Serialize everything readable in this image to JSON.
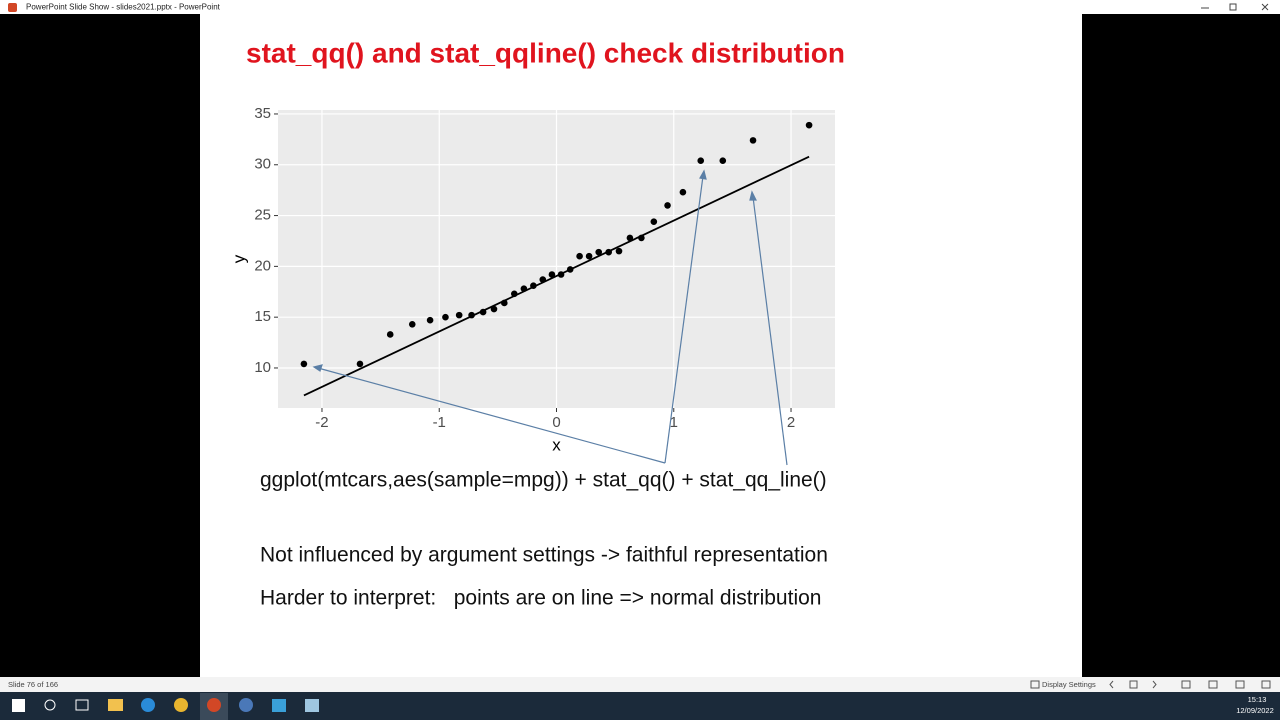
{
  "window": {
    "title": "PowerPoint Slide Show  -  slides2021.pptx  -  PowerPoint"
  },
  "slide": {
    "title": "stat_qq() and stat_qqline() check distribution",
    "lines": [
      "ggplot(mtcars,aes(sample=mpg)) + stat_qq() + stat_qq_line()",
      "Not influenced by argument settings -> faithful representation",
      "Harder to interpret:   points are on line => normal distribution"
    ]
  },
  "chart_data": {
    "type": "scatter",
    "x_label": "x",
    "y_label": "y",
    "xlim": [
      -2.375,
      2.375
    ],
    "ylim": [
      6.06,
      35.39
    ],
    "xticks": [
      -2,
      -1,
      0,
      1,
      2
    ],
    "yticks": [
      10,
      15,
      20,
      25,
      30,
      35
    ],
    "grid": true,
    "points": {
      "color": "#000000",
      "x": [
        -2.154,
        -1.676,
        -1.418,
        -1.23,
        -1.078,
        -0.947,
        -0.83,
        -0.724,
        -0.626,
        -0.533,
        -0.445,
        -0.36,
        -0.278,
        -0.197,
        -0.117,
        -0.039,
        0.039,
        0.117,
        0.197,
        0.278,
        0.36,
        0.445,
        0.533,
        0.626,
        0.724,
        0.83,
        0.947,
        1.078,
        1.23,
        1.418,
        1.676,
        2.154
      ],
      "y": [
        10.4,
        10.4,
        13.3,
        14.3,
        14.7,
        15.0,
        15.2,
        15.2,
        15.5,
        15.8,
        16.4,
        17.3,
        17.8,
        18.1,
        18.7,
        19.2,
        19.2,
        19.7,
        21.0,
        21.0,
        21.4,
        21.4,
        21.5,
        22.8,
        22.8,
        24.4,
        26.0,
        27.3,
        30.4,
        30.4,
        32.4,
        33.9
      ]
    },
    "line": {
      "color": "#000000",
      "x": [
        -2.154,
        2.154
      ],
      "y": [
        7.3,
        30.8
      ]
    }
  },
  "status_bar": {
    "slide_number": "Slide 76 of 166",
    "display_settings": "Display Settings"
  },
  "taskbar": {
    "time": "15:13",
    "date": "12/09/2022"
  }
}
